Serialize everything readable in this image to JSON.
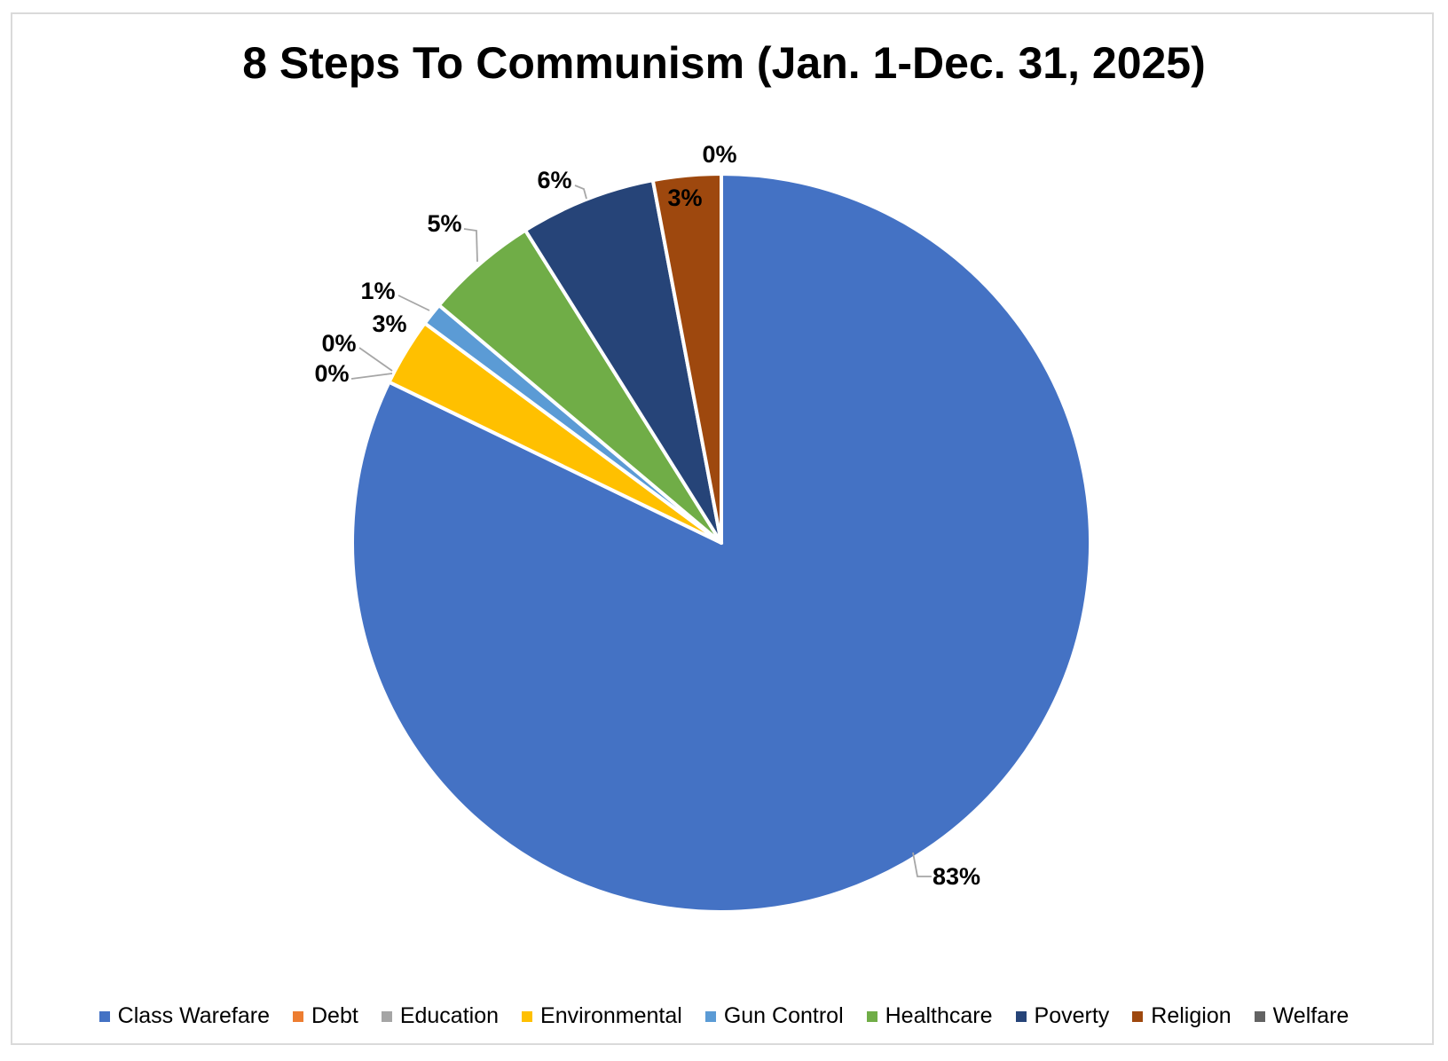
{
  "title": "8 Steps To Communism (Jan. 1-Dec. 31, 2025)",
  "chart_data": {
    "type": "pie",
    "title": "8 Steps To Communism (Jan. 1-Dec. 31, 2025)",
    "direction": "clockwise",
    "start_angle_deg": 0,
    "legend_position": "bottom",
    "background_color": "#FFFFFF",
    "frame_border_color": "#DADADA",
    "data_label_color": "#000000",
    "leader_line_color": "#A6A6A6",
    "slice_border_color": "#FFFFFF",
    "series": [
      {
        "name": "Class Warefare",
        "value_pct": 83,
        "label": "83%",
        "color": "#4472C4"
      },
      {
        "name": "Debt",
        "value_pct": 0,
        "label": "0%",
        "color": "#ED7D31"
      },
      {
        "name": "Education",
        "value_pct": 0,
        "label": "0%",
        "color": "#A5A5A5"
      },
      {
        "name": "Environmental",
        "value_pct": 3,
        "label": "3%",
        "color": "#FFC000"
      },
      {
        "name": "Gun Control",
        "value_pct": 1,
        "label": "1%",
        "color": "#5B9BD5"
      },
      {
        "name": "Healthcare",
        "value_pct": 5,
        "label": "5%",
        "color": "#70AD47"
      },
      {
        "name": "Poverty",
        "value_pct": 6,
        "label": "6%",
        "color": "#264478"
      },
      {
        "name": "Religion",
        "value_pct": 3,
        "label": "3%",
        "color": "#9E480E"
      },
      {
        "name": "Welfare",
        "value_pct": 0,
        "label": "0%",
        "color": "#636363"
      }
    ]
  }
}
